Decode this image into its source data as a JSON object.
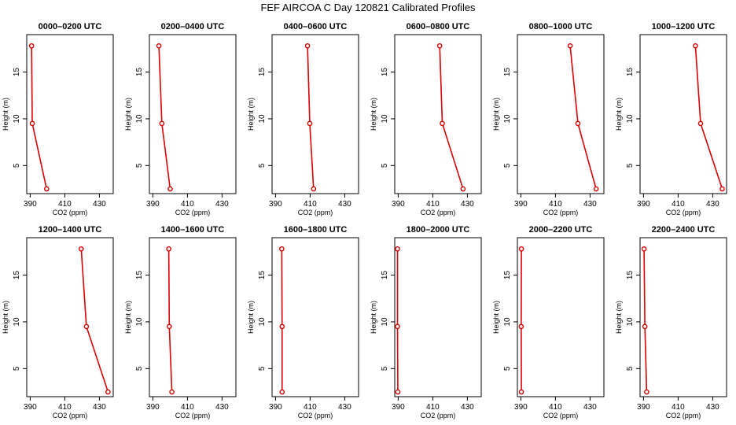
{
  "title": "FEF AIRCOA C  Day 120821  Calibrated Profiles",
  "colors": {
    "line": "#dd0000",
    "marker": "#dd0000",
    "axis": "#000000"
  },
  "chart_data": [
    {
      "type": "line",
      "title": "0000–0200 UTC",
      "xlabel": "CO2 (ppm)",
      "ylabel": "Height (m)",
      "xlim": [
        388,
        438
      ],
      "ylim": [
        2,
        19
      ],
      "xticks": [
        390,
        410,
        430
      ],
      "yticks": [
        5,
        10,
        15
      ],
      "points": [
        {
          "x": 399.5,
          "y": 2.5
        },
        {
          "x": 391.2,
          "y": 9.5
        },
        {
          "x": 390.8,
          "y": 17.8
        }
      ]
    },
    {
      "type": "line",
      "title": "0200–0400 UTC",
      "xlabel": "CO2 (ppm)",
      "ylabel": "Height (m)",
      "xlim": [
        388,
        438
      ],
      "ylim": [
        2,
        19
      ],
      "xticks": [
        390,
        410,
        430
      ],
      "yticks": [
        5,
        10,
        15
      ],
      "points": [
        {
          "x": 400.0,
          "y": 2.5
        },
        {
          "x": 395.2,
          "y": 9.5
        },
        {
          "x": 393.5,
          "y": 17.8
        }
      ]
    },
    {
      "type": "line",
      "title": "0400–0600 UTC",
      "xlabel": "CO2 (ppm)",
      "ylabel": "Height (m)",
      "xlim": [
        388,
        438
      ],
      "ylim": [
        2,
        19
      ],
      "xticks": [
        390,
        410,
        430
      ],
      "yticks": [
        5,
        10,
        15
      ],
      "points": [
        {
          "x": 412.0,
          "y": 2.5
        },
        {
          "x": 409.8,
          "y": 9.5
        },
        {
          "x": 408.5,
          "y": 17.8
        }
      ]
    },
    {
      "type": "line",
      "title": "0600–0800 UTC",
      "xlabel": "CO2 (ppm)",
      "ylabel": "Height (m)",
      "xlim": [
        388,
        438
      ],
      "ylim": [
        2,
        19
      ],
      "xticks": [
        390,
        410,
        430
      ],
      "yticks": [
        5,
        10,
        15
      ],
      "points": [
        {
          "x": 427.5,
          "y": 2.5
        },
        {
          "x": 415.5,
          "y": 9.5
        },
        {
          "x": 414.0,
          "y": 17.8
        }
      ]
    },
    {
      "type": "line",
      "title": "0800–1000 UTC",
      "xlabel": "CO2 (ppm)",
      "ylabel": "Height (m)",
      "xlim": [
        388,
        438
      ],
      "ylim": [
        2,
        19
      ],
      "xticks": [
        390,
        410,
        430
      ],
      "yticks": [
        5,
        10,
        15
      ],
      "points": [
        {
          "x": 433.5,
          "y": 2.5
        },
        {
          "x": 423.0,
          "y": 9.5
        },
        {
          "x": 418.5,
          "y": 17.8
        }
      ]
    },
    {
      "type": "line",
      "title": "1000–1200 UTC",
      "xlabel": "CO2 (ppm)",
      "ylabel": "Height (m)",
      "xlim": [
        388,
        438
      ],
      "ylim": [
        2,
        19
      ],
      "xticks": [
        390,
        410,
        430
      ],
      "yticks": [
        5,
        10,
        15
      ],
      "points": [
        {
          "x": 435.5,
          "y": 2.5
        },
        {
          "x": 423.0,
          "y": 9.5
        },
        {
          "x": 420.0,
          "y": 17.8
        }
      ]
    },
    {
      "type": "line",
      "title": "1200–1400 UTC",
      "xlabel": "CO2 (ppm)",
      "ylabel": "Height (m)",
      "xlim": [
        388,
        438
      ],
      "ylim": [
        2,
        19
      ],
      "xticks": [
        390,
        410,
        430
      ],
      "yticks": [
        5,
        10,
        15
      ],
      "points": [
        {
          "x": 435.0,
          "y": 2.5
        },
        {
          "x": 422.5,
          "y": 9.5
        },
        {
          "x": 419.5,
          "y": 17.8
        }
      ]
    },
    {
      "type": "line",
      "title": "1400–1600 UTC",
      "xlabel": "CO2 (ppm)",
      "ylabel": "Height (m)",
      "xlim": [
        388,
        438
      ],
      "ylim": [
        2,
        19
      ],
      "xticks": [
        390,
        410,
        430
      ],
      "yticks": [
        5,
        10,
        15
      ],
      "points": [
        {
          "x": 401.0,
          "y": 2.5
        },
        {
          "x": 399.5,
          "y": 9.5
        },
        {
          "x": 399.2,
          "y": 17.8
        }
      ]
    },
    {
      "type": "line",
      "title": "1600–1800 UTC",
      "xlabel": "CO2 (ppm)",
      "ylabel": "Height (m)",
      "xlim": [
        388,
        438
      ],
      "ylim": [
        2,
        19
      ],
      "xticks": [
        390,
        410,
        430
      ],
      "yticks": [
        5,
        10,
        15
      ],
      "points": [
        {
          "x": 393.8,
          "y": 2.5
        },
        {
          "x": 393.8,
          "y": 9.5
        },
        {
          "x": 393.6,
          "y": 17.8
        }
      ]
    },
    {
      "type": "line",
      "title": "1800–2000 UTC",
      "xlabel": "CO2 (ppm)",
      "ylabel": "Height (m)",
      "xlim": [
        388,
        438
      ],
      "ylim": [
        2,
        19
      ],
      "xticks": [
        390,
        410,
        430
      ],
      "yticks": [
        5,
        10,
        15
      ],
      "points": [
        {
          "x": 389.8,
          "y": 2.5
        },
        {
          "x": 389.6,
          "y": 9.5
        },
        {
          "x": 389.6,
          "y": 17.8
        }
      ]
    },
    {
      "type": "line",
      "title": "2000–2200 UTC",
      "xlabel": "CO2 (ppm)",
      "ylabel": "Height (m)",
      "xlim": [
        388,
        438
      ],
      "ylim": [
        2,
        19
      ],
      "xticks": [
        390,
        410,
        430
      ],
      "yticks": [
        5,
        10,
        15
      ],
      "points": [
        {
          "x": 390.3,
          "y": 2.5
        },
        {
          "x": 390.2,
          "y": 9.5
        },
        {
          "x": 390.3,
          "y": 17.8
        }
      ]
    },
    {
      "type": "line",
      "title": "2200–2400 UTC",
      "xlabel": "CO2 (ppm)",
      "ylabel": "Height (m)",
      "xlim": [
        388,
        438
      ],
      "ylim": [
        2,
        19
      ],
      "xticks": [
        390,
        410,
        430
      ],
      "yticks": [
        5,
        10,
        15
      ],
      "points": [
        {
          "x": 391.8,
          "y": 2.5
        },
        {
          "x": 390.8,
          "y": 9.5
        },
        {
          "x": 390.3,
          "y": 17.8
        }
      ]
    }
  ]
}
